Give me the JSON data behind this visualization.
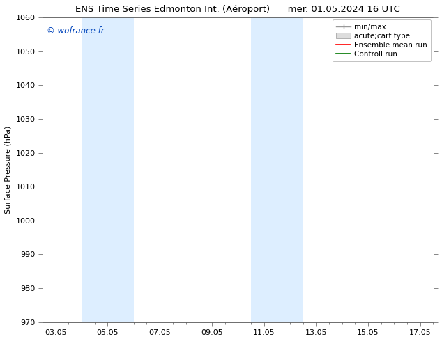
{
  "title": "ENS Time Series Edmonton Int. (Aéroport)      mer. 01.05.2024 16 UTC",
  "ylabel": "Surface Pressure (hPa)",
  "ylim": [
    970,
    1060
  ],
  "yticks": [
    970,
    980,
    990,
    1000,
    1010,
    1020,
    1030,
    1040,
    1050,
    1060
  ],
  "xtick_labels": [
    "03.05",
    "05.05",
    "07.05",
    "09.05",
    "11.05",
    "13.05",
    "15.05",
    "17.05"
  ],
  "xtick_positions": [
    0,
    2,
    4,
    6,
    8,
    10,
    12,
    14
  ],
  "xlim": [
    -0.5,
    14.5
  ],
  "shaded_bands": [
    {
      "x_start": 1.0,
      "x_end": 3.0
    },
    {
      "x_start": 7.5,
      "x_end": 9.5
    }
  ],
  "shade_color": "#ddeeff",
  "watermark": "© wofrance.fr",
  "watermark_color": "#0044bb",
  "background_color": "#ffffff",
  "legend_entries": [
    {
      "label": "min/max",
      "color": "#999999",
      "lw": 1.0
    },
    {
      "label": "acute;cart type",
      "facecolor": "#dddddd",
      "edgecolor": "#999999"
    },
    {
      "label": "Ensemble mean run",
      "color": "#ff0000",
      "lw": 1.2
    },
    {
      "label": "Controll run",
      "color": "#007700",
      "lw": 1.2
    }
  ],
  "title_fontsize": 9.5,
  "ylabel_fontsize": 8,
  "tick_fontsize": 8,
  "watermark_fontsize": 8.5,
  "legend_fontsize": 7.5
}
